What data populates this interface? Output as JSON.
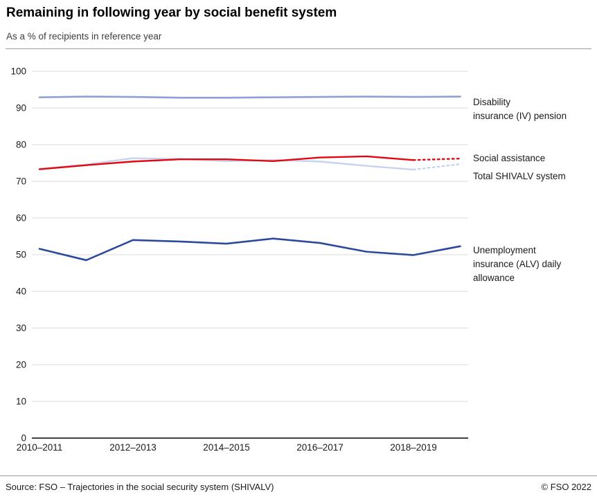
{
  "chart_data": {
    "type": "line",
    "title": "Remaining in following year by social benefit system",
    "subtitle": "As a % of recipients in reference year",
    "xlabel": "",
    "ylabel": "",
    "ylim": [
      0,
      100
    ],
    "y_ticks": [
      0,
      10,
      20,
      30,
      40,
      50,
      60,
      70,
      80,
      90,
      100
    ],
    "x": [
      2010,
      2011,
      2012,
      2013,
      2014,
      2015,
      2016,
      2017,
      2018,
      2019
    ],
    "x_tick_labels": [
      "2010–2011",
      "2012–2013",
      "2014–2015",
      "2016–2017",
      "2018–2019"
    ],
    "grid": true,
    "legend_position": "right",
    "series": [
      {
        "name": "Disability insurance (IV) pension",
        "label_lines": [
          "Disability",
          "insurance (IV) pension"
        ],
        "color": "#8ca0d6",
        "values": [
          92.9,
          93.1,
          93.0,
          92.8,
          92.8,
          92.9,
          93.0,
          93.1,
          93.0,
          93.1
        ],
        "dash_last_segment": false
      },
      {
        "name": "Social assistance",
        "label_lines": [
          "Social assistance"
        ],
        "color": "#e30613",
        "values": [
          73.3,
          74.4,
          75.4,
          76.0,
          76.0,
          75.5,
          76.5,
          76.8,
          75.8,
          76.2
        ],
        "dash_last_segment": true
      },
      {
        "name": "Total SHIVALV system",
        "label_lines": [
          "Total SHIVALV system"
        ],
        "color": "#c7d2ec",
        "values": [
          73.4,
          74.6,
          76.3,
          76.1,
          75.5,
          75.8,
          75.4,
          74.2,
          73.2,
          74.7
        ],
        "dash_last_segment": true
      },
      {
        "name": "Unemployment insurance (ALV) daily allowance",
        "label_lines": [
          "Unemployment",
          "insurance (ALV) daily",
          "allowance"
        ],
        "color": "#2c4a9a",
        "values": [
          51.6,
          48.5,
          54.0,
          53.6,
          53.0,
          54.4,
          53.2,
          50.8,
          49.9,
          52.3
        ],
        "dash_last_segment": false
      }
    ]
  },
  "footer": {
    "source": "Source: FSO – Trajectories in the social security system (SHIVALV)",
    "copyright": "© FSO 2022"
  }
}
